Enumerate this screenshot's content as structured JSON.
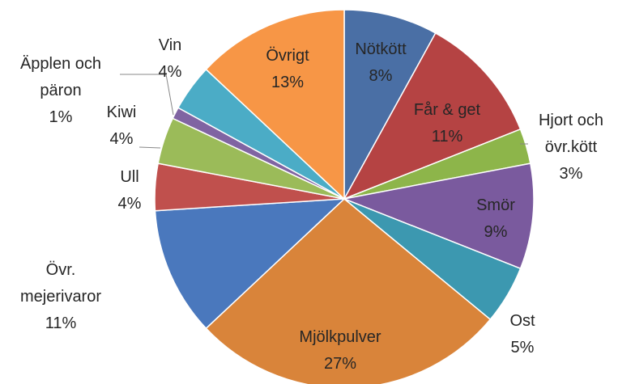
{
  "chart_data": {
    "type": "pie",
    "categories": [
      "Nötkött",
      "Får & get",
      "Hjort och övr.kött",
      "Smör",
      "Ost",
      "Mjölkpulver",
      "Övr. mejerivaror",
      "Ull",
      "Kiwi",
      "Äpplen och päron",
      "Vin",
      "Övrigt"
    ],
    "values": [
      8,
      11,
      3,
      9,
      5,
      27,
      11,
      4,
      4,
      1,
      4,
      13
    ],
    "value_labels": [
      "8%",
      "11%",
      "3%",
      "9%",
      "5%",
      "27%",
      "11%",
      "4%",
      "4%",
      "1%",
      "4%",
      "13%"
    ],
    "colors": [
      "#4a6fa5",
      "#b54343",
      "#8db54a",
      "#7a5a9e",
      "#3c98b0",
      "#d9843a",
      "#4a78bd",
      "#c0504d",
      "#9bbb59",
      "#8064a2",
      "#4bacc6",
      "#f79646"
    ]
  }
}
